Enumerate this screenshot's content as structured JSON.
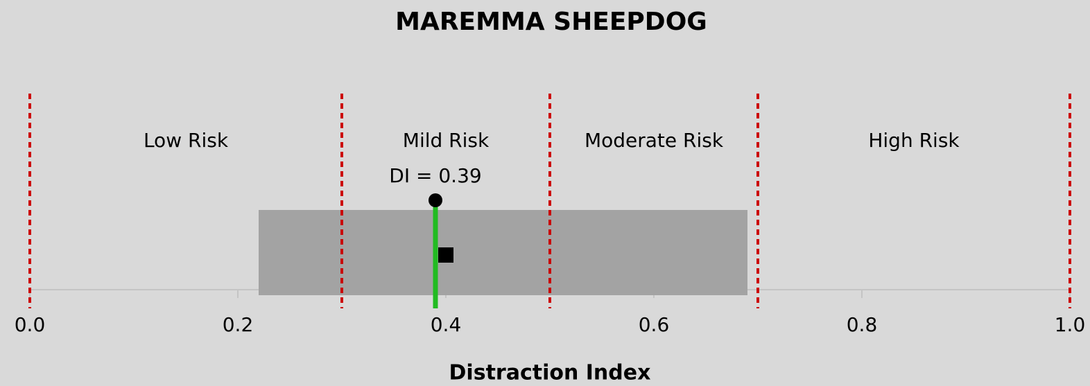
{
  "chart_data": {
    "type": "risk_scale",
    "title": "MAREMMA SHEEPDOG",
    "xlabel": "Distraction Index",
    "xlim": [
      0,
      1
    ],
    "xticks": [
      {
        "value": 0,
        "label": "0.0"
      },
      0.2,
      0.4,
      0.6,
      0.8,
      {
        "value": 1,
        "label": "1.0"
      }
    ],
    "thresholds": [
      0,
      0.3,
      0.5,
      0.7,
      1
    ],
    "regions": [
      "Low Risk",
      "Mild Risk",
      "Moderate Risk",
      "High Risk"
    ],
    "range": [
      0.22,
      0.69
    ],
    "di": 0.39,
    "di_label": "DI = 0.39",
    "marker": 0.4,
    "threshold_color": "#cc0000",
    "range_color": "#a3a3a3",
    "di_color": "#22bb22"
  }
}
